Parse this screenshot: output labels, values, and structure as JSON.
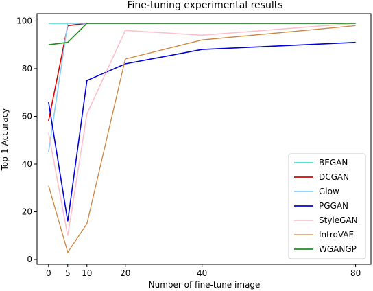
{
  "chart_data": {
    "type": "line",
    "title": "Fine-tuning experimental results",
    "xlabel": "Number of fine-tune image",
    "ylabel": "Top-1 Accuracy",
    "x": [
      0,
      5,
      10,
      20,
      40,
      80
    ],
    "xticks": [
      0,
      5,
      10,
      20,
      40,
      80
    ],
    "yticks": [
      0,
      20,
      40,
      60,
      80,
      100
    ],
    "xlim": [
      -3,
      84
    ],
    "ylim": [
      -2,
      103
    ],
    "grid": false,
    "legend_position": "lower-right",
    "series": [
      {
        "name": "BEGAN",
        "color": "#40e0d0",
        "values": [
          99,
          99,
          99,
          99,
          99,
          99
        ]
      },
      {
        "name": "DCGAN",
        "color": "#dd0000",
        "values": [
          58,
          98,
          99,
          99,
          99,
          99
        ]
      },
      {
        "name": "Glow",
        "color": "#87cefa",
        "values": [
          45,
          99,
          99,
          99,
          99,
          99
        ]
      },
      {
        "name": "PGGAN",
        "color": "#0000dd",
        "values": [
          66,
          16,
          75,
          82,
          88,
          91
        ]
      },
      {
        "name": "StyleGAN",
        "color": "#ffc0cb",
        "values": [
          53,
          10,
          61,
          96,
          94,
          99
        ]
      },
      {
        "name": "IntroVAE",
        "color": "#cd853f",
        "values": [
          31,
          3,
          15,
          84,
          92,
          98
        ]
      },
      {
        "name": "WGANGP",
        "color": "#228b22",
        "values": [
          90,
          91,
          99,
          99,
          99,
          99
        ]
      }
    ]
  }
}
